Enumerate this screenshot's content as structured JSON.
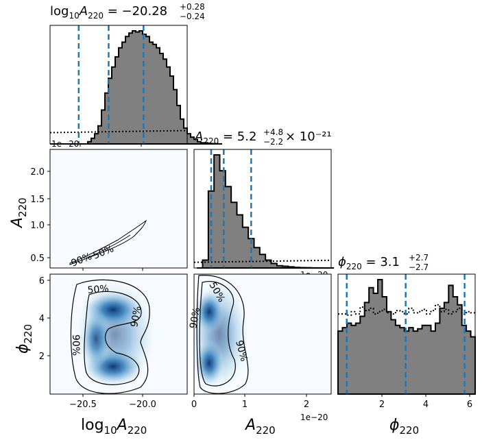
{
  "chart_data": {
    "type": "corner",
    "parameters": [
      "log10A220",
      "A220",
      "phi220"
    ],
    "titles": {
      "log10A220": {
        "median": "−20.28",
        "plus": "+0.28",
        "minus": "−0.24"
      },
      "A220": {
        "median": "5.2",
        "plus": "+4.8",
        "minus": "−2.2",
        "scale": "× 10⁻²¹"
      },
      "phi220": {
        "median": "3.1",
        "plus": "+2.7",
        "minus": "−2.7"
      }
    },
    "axis_labels": {
      "log10A220": {
        "main": "log",
        "sub1": "10",
        "mid": "A",
        "sub2": "220"
      },
      "A220": {
        "main": "A",
        "sub2": "220"
      },
      "phi220": {
        "main": "ϕ",
        "sub2": "220"
      }
    },
    "offset_text": "1e−20",
    "ticks": {
      "log10A220": [
        "−20.5",
        "−20.0"
      ],
      "A220_y": [
        "0.5",
        "1.0",
        "1.5",
        "2.0"
      ],
      "A220_x": [
        "0",
        "1",
        "2"
      ],
      "phi220_y": [
        "2",
        "4",
        "6"
      ],
      "phi220_x": [
        "2",
        "4",
        "6"
      ]
    },
    "contour_labels": {
      "inner": "50%",
      "outer": "90%"
    },
    "ranges": {
      "log10A220": [
        -20.75,
        -19.65
      ],
      "A220": [
        0,
        2.4
      ],
      "A220_y": [
        0.15,
        2.4
      ],
      "phi220": [
        0,
        6.283
      ]
    },
    "quantiles": {
      "log10A220": [
        -20.52,
        -20.28,
        -20.0
      ],
      "A220": [
        0.3,
        0.52,
        1.0
      ],
      "phi220": [
        0.4,
        3.1,
        5.8
      ]
    },
    "hist_log10A220": {
      "bin_start": -20.75,
      "bin_width": 0.0275,
      "counts": [
        0,
        0,
        0,
        0,
        0,
        0,
        0,
        0,
        0,
        0,
        0,
        0.02,
        0.05,
        0.09,
        0.16,
        0.3,
        0.45,
        0.58,
        0.68,
        0.77,
        0.85,
        0.9,
        0.95,
        0.98,
        1.0,
        0.99,
        1.0,
        0.97,
        0.95,
        0.9,
        0.88,
        0.85,
        0.8,
        0.75,
        0.68,
        0.6,
        0.48,
        0.34,
        0.22,
        0.14,
        0.09,
        0.06,
        0.04,
        0.02,
        0.01,
        0.01,
        0.005,
        0.003,
        0.002,
        0.001
      ]
    },
    "hist_A220": {
      "bin_start": 0.05,
      "bin_width": 0.1,
      "counts": [
        0,
        0.07,
        0.68,
        1.0,
        0.86,
        0.72,
        0.58,
        0.47,
        0.36,
        0.26,
        0.18,
        0.12,
        0.07,
        0.04,
        0.02,
        0.015,
        0.01,
        0.005,
        0.003,
        0.002,
        0.001,
        0.001,
        0,
        0
      ]
    },
    "hist_phi220": {
      "bin_start": 0,
      "bin_width": 0.2027,
      "counts": [
        0.55,
        0.58,
        0.62,
        0.6,
        0.62,
        0.68,
        0.8,
        0.93,
        0.88,
        1.0,
        0.85,
        0.72,
        0.65,
        0.6,
        0.58,
        0.55,
        0.58,
        0.55,
        0.57,
        0.6,
        0.6,
        0.55,
        0.62,
        0.75,
        0.8,
        0.95,
        0.85,
        0.78,
        0.6,
        0.55,
        0.5
      ]
    },
    "prior_phi220": [
      0.7,
      0.7,
      0.69,
      0.72,
      0.7,
      0.76,
      0.73,
      0.75,
      0.7,
      0.72,
      0.74,
      0.71,
      0.7,
      0.73,
      0.72,
      0.7,
      0.75,
      0.71,
      0.72,
      0.74,
      0.7,
      0.73,
      0.78,
      0.72,
      0.74,
      0.7,
      0.72,
      0.75,
      0.7,
      0.72,
      0.71
    ],
    "prior_log10A220_level": 0.1,
    "prior_A220_level": 0.05
  }
}
